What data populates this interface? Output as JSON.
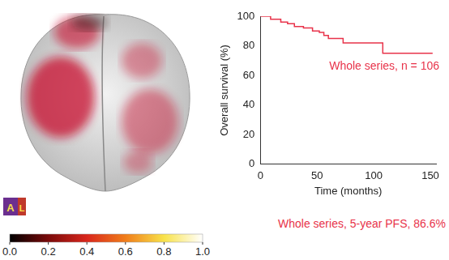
{
  "chart_data": {
    "type": "line",
    "line_style": "steps",
    "x_label": "Time (months)",
    "y_label": "Overall survival (%)",
    "x": [
      0,
      9,
      18,
      24,
      30,
      38,
      46,
      52,
      56,
      60,
      73,
      108,
      152
    ],
    "series": [
      {
        "name": "Whole series, n = 106",
        "color": "#e8334a",
        "values": [
          100,
          98,
          96,
          95,
          93,
          92,
          90,
          89,
          87,
          85,
          82,
          75,
          75
        ]
      }
    ],
    "xlim": [
      0,
      155
    ],
    "xticks": [
      0,
      50,
      100,
      150
    ],
    "ylim": [
      0,
      100
    ],
    "yticks": [
      0,
      20,
      40,
      60,
      80,
      100
    ],
    "grid": false,
    "annotation": "Whole series, 5-year PFS, 86.6%",
    "view_labels": [
      "A",
      "L"
    ],
    "colorbar": {
      "range": [
        0,
        1
      ],
      "ticks": [
        {
          "value": 0,
          "label": "0.0"
        },
        {
          "value": 0.2,
          "label": "0.2"
        },
        {
          "value": 0.4,
          "label": "0.4"
        },
        {
          "value": 0.6,
          "label": "0.6"
        },
        {
          "value": 0.8,
          "label": "0.8"
        },
        {
          "value": 1,
          "label": "1.0"
        }
      ],
      "colors": [
        "#000000",
        "#7a0a0a",
        "#d9261c",
        "#f07d1a",
        "#f8e24a",
        "#ffffff"
      ]
    }
  }
}
